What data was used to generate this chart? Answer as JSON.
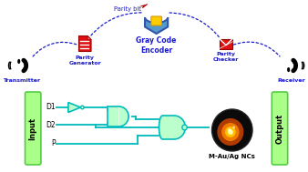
{
  "title": "Gray Code\nEncoder",
  "bg_color": "#ffffff",
  "transmitter_label": "Transmitter",
  "receiver_label": "Receiver",
  "parity_bit_label": "Parity bit",
  "parity_gen_label": "Parity\nGenerator",
  "parity_chk_label": "Parity\nChecker",
  "input_label": "Input",
  "output_label": "Output",
  "d1_label": "D1",
  "d2_label": "D2",
  "p_label": "P",
  "m_label": "M-Au/Ag NCs",
  "blue_color": "#1a1acc",
  "cyan_color": "#00bbbb",
  "green_fill": "#aaff88",
  "green_edge": "#55cc44",
  "gate_fill": "#bbffcc",
  "gate_edge": "#00bbbb",
  "red_icon": "#dd1111",
  "shield_fill": "#5599cc",
  "shield_edge": "#3355aa"
}
